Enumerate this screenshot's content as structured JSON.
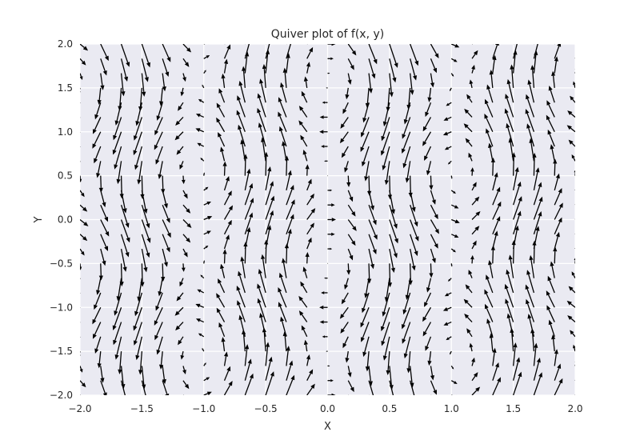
{
  "chart_data": {
    "type": "quiver",
    "title": "Quiver plot of f(x, y)",
    "xlabel": "X",
    "ylabel": "Y",
    "xlim": [
      -2.0,
      2.0
    ],
    "ylim": [
      -2.0,
      2.0
    ],
    "xticks": [
      "−2.0",
      "−1.5",
      "−1.0",
      "−0.5",
      "0.0",
      "0.5",
      "1.0",
      "1.5",
      "2.0"
    ],
    "yticks": [
      "−2.0",
      "−1.5",
      "−1.0",
      "−0.5",
      "0.0",
      "0.5",
      "1.0",
      "1.5",
      "2.0"
    ],
    "x_tick_values": [
      -2.0,
      -1.5,
      -1.0,
      -0.5,
      0.0,
      0.5,
      1.0,
      1.5,
      2.0
    ],
    "y_tick_values": [
      -2.0,
      -1.5,
      -1.0,
      -0.5,
      0.0,
      0.5,
      1.0,
      1.5,
      2.0
    ],
    "grid": true,
    "background_color": "#eaeaf2",
    "grid_color": "#ffffff",
    "arrow_color": "#000000",
    "grid_points": {
      "x_start": -2.0,
      "x_stop": 2.0,
      "nx": 25,
      "y_start": -2.0,
      "y_stop": 2.0,
      "ny": 25
    },
    "vector_field": {
      "u": "cos(3*y) * 0.35",
      "v": "-sin(3*x)"
    }
  }
}
